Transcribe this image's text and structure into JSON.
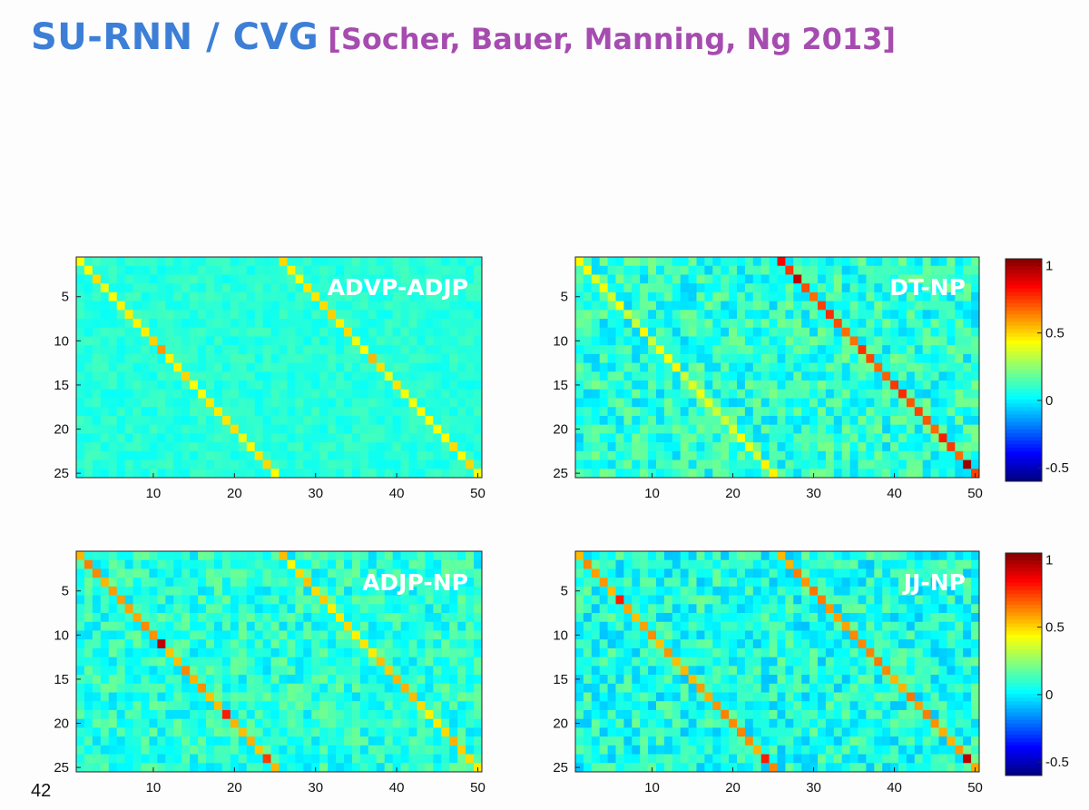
{
  "slide": {
    "title": "SU-RNN / CVG",
    "citation": "[Socher, Bauer, Manning, Ng 2013]",
    "page_number": "42"
  },
  "colorbar": {
    "colormap": "jet",
    "range": [
      -0.6,
      1.05
    ],
    "tick_labels": [
      "1",
      "0.5",
      "0",
      "-0.5"
    ],
    "tick_values": [
      1,
      0.5,
      0,
      -0.5
    ]
  },
  "chart_data": [
    {
      "type": "heatmap",
      "title": "ADVP-ADJP",
      "rows": 25,
      "cols": 50,
      "x_ticks": [
        10,
        20,
        30,
        40,
        50
      ],
      "y_ticks": [
        5,
        10,
        15,
        20,
        25
      ],
      "background_mean": 0.08,
      "background_noise": 0.05,
      "diagonals": [
        {
          "start_col": 1,
          "value": 0.45
        },
        {
          "start_col": 26,
          "value": 0.45
        }
      ],
      "highlights": [
        [
          11,
          11,
          0.6
        ],
        [
          12,
          37,
          0.55
        ]
      ],
      "colorbar": false
    },
    {
      "type": "heatmap",
      "title": "DT-NP",
      "rows": 25,
      "cols": 50,
      "x_ticks": [
        10,
        20,
        30,
        40,
        50
      ],
      "y_ticks": [
        5,
        10,
        15,
        20,
        25
      ],
      "background_mean": 0.08,
      "background_noise": 0.14,
      "diagonals": [
        {
          "start_col": 1,
          "value": 0.4
        },
        {
          "start_col": 26,
          "value": 0.72
        }
      ],
      "highlights": [
        [
          1,
          26,
          0.85
        ],
        [
          3,
          28,
          0.95
        ],
        [
          24,
          49,
          1.0
        ],
        [
          21,
          46,
          0.8
        ]
      ],
      "colorbar": true
    },
    {
      "type": "heatmap",
      "title": "ADJP-NP",
      "rows": 25,
      "cols": 50,
      "x_ticks": [
        10,
        20,
        30,
        40,
        50
      ],
      "y_ticks": [
        5,
        10,
        15,
        20,
        25
      ],
      "background_mean": 0.08,
      "background_noise": 0.12,
      "diagonals": [
        {
          "start_col": 1,
          "value": 0.58
        },
        {
          "start_col": 26,
          "value": 0.5
        }
      ],
      "highlights": [
        [
          11,
          11,
          0.95
        ],
        [
          19,
          19,
          0.8
        ],
        [
          24,
          24,
          0.75
        ]
      ],
      "colorbar": false
    },
    {
      "type": "heatmap",
      "title": "JJ-NP",
      "rows": 25,
      "cols": 50,
      "x_ticks": [
        10,
        20,
        30,
        40,
        50
      ],
      "y_ticks": [
        5,
        10,
        15,
        20,
        25
      ],
      "background_mean": 0.06,
      "background_noise": 0.14,
      "diagonals": [
        {
          "start_col": 1,
          "value": 0.58
        },
        {
          "start_col": 26,
          "value": 0.6
        }
      ],
      "highlights": [
        [
          6,
          6,
          0.8
        ],
        [
          24,
          24,
          0.8
        ],
        [
          24,
          49,
          0.95
        ]
      ],
      "colorbar": true
    }
  ]
}
